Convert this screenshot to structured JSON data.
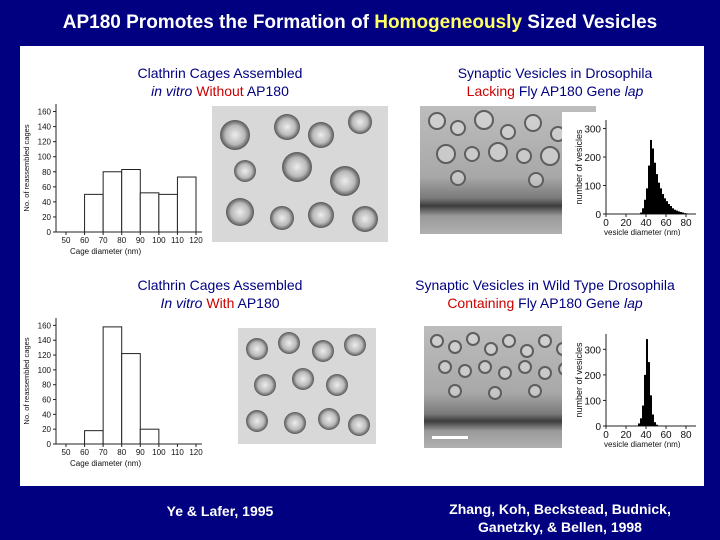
{
  "title": {
    "before": "AP180 Promotes the Formation of ",
    "highlight": "Homogeneously",
    "after": " Sized Vesicles"
  },
  "captions": {
    "top_left": {
      "line1": "Clathrin Cages Assembled",
      "line2_italic": "in vitro",
      "line2_red": "Without",
      "line2_end": "AP180"
    },
    "top_right": {
      "line1": "Synaptic Vesicles in Drosophila",
      "line2_red": "Lacking",
      "line2_mid": "Fly AP180 Gene",
      "line2_italic": "lap"
    },
    "bottom_left": {
      "line1": "Clathrin Cages Assembled",
      "line2_italic": "In vitro",
      "line2_red": "With",
      "line2_end": "AP180"
    },
    "bottom_right": {
      "line1": "Synaptic Vesicles in Wild Type Drosophila",
      "line2_red": "Containing",
      "line2_mid": "Fly AP180 Gene",
      "line2_italic": "lap"
    }
  },
  "citations": {
    "left": "Ye & Lafer, 1995",
    "right_line1": "Zhang, Koh, Beckstead, Budnick,",
    "right_line2": "Ganetzky, & Bellen, 1998"
  },
  "colors": {
    "background": "#000080",
    "title_highlight": "#ffff66",
    "caption_red": "#cc0000",
    "caption_blue": "#000080"
  },
  "chart_data": [
    {
      "type": "bar",
      "id": "cages-without-ap180",
      "xlabel": "Cage diameter (nm)",
      "ylabel": "No. of reassembled cages",
      "categories": [
        "50-60",
        "60-70",
        "70-80",
        "80-90",
        "90-100",
        "100-110",
        "110-120"
      ],
      "x_ticks": [
        "50",
        "60",
        "70",
        "80",
        "90",
        "100",
        "110",
        "120"
      ],
      "values": [
        0,
        50,
        80,
        83,
        52,
        50,
        73
      ],
      "ylim": [
        0,
        170
      ],
      "y_ticks": [
        "0",
        "20",
        "40",
        "60",
        "80",
        "100",
        "120",
        "140",
        "160"
      ]
    },
    {
      "type": "bar",
      "id": "cages-with-ap180",
      "xlabel": "Cage diameter (nm)",
      "ylabel": "No. of reassembled cages",
      "categories": [
        "50-60",
        "60-70",
        "70-80",
        "80-90",
        "90-100",
        "100-110",
        "110-120"
      ],
      "x_ticks": [
        "50",
        "60",
        "70",
        "80",
        "90",
        "100",
        "110",
        "120"
      ],
      "values": [
        0,
        18,
        158,
        122,
        20,
        0,
        0
      ],
      "ylim": [
        0,
        170
      ],
      "y_ticks": [
        "0",
        "20",
        "40",
        "60",
        "80",
        "100",
        "120",
        "140",
        "160"
      ]
    },
    {
      "type": "bar",
      "id": "vesicles-lacking-lap",
      "xlabel": "vesicle diameter (nm)",
      "ylabel": "number of vesicles",
      "x_ticks": [
        "0",
        "20",
        "40",
        "60",
        "80"
      ],
      "xlim": [
        0,
        90
      ],
      "bins_x": [
        34,
        36,
        38,
        40,
        42,
        44,
        46,
        48,
        50,
        52,
        54,
        56,
        58,
        60,
        62,
        64,
        66,
        68,
        70,
        72,
        74,
        76,
        78,
        80
      ],
      "values": [
        5,
        20,
        50,
        90,
        170,
        260,
        230,
        180,
        140,
        110,
        90,
        70,
        55,
        45,
        35,
        28,
        20,
        15,
        12,
        9,
        7,
        5,
        3,
        2
      ],
      "ylim": [
        0,
        330
      ],
      "y_ticks": [
        "0",
        "100",
        "200",
        "300"
      ]
    },
    {
      "type": "bar",
      "id": "vesicles-wild-type",
      "xlabel": "vesicle diameter (nm)",
      "ylabel": "number of vesicles",
      "x_ticks": [
        "0",
        "20",
        "40",
        "60",
        "80"
      ],
      "xlim": [
        0,
        90
      ],
      "bins_x": [
        32,
        34,
        36,
        38,
        40,
        42,
        44,
        46,
        48,
        50
      ],
      "values": [
        10,
        30,
        80,
        200,
        340,
        250,
        120,
        45,
        15,
        5
      ],
      "ylim": [
        0,
        360
      ],
      "y_ticks": [
        "0",
        "100",
        "200",
        "300"
      ]
    }
  ]
}
